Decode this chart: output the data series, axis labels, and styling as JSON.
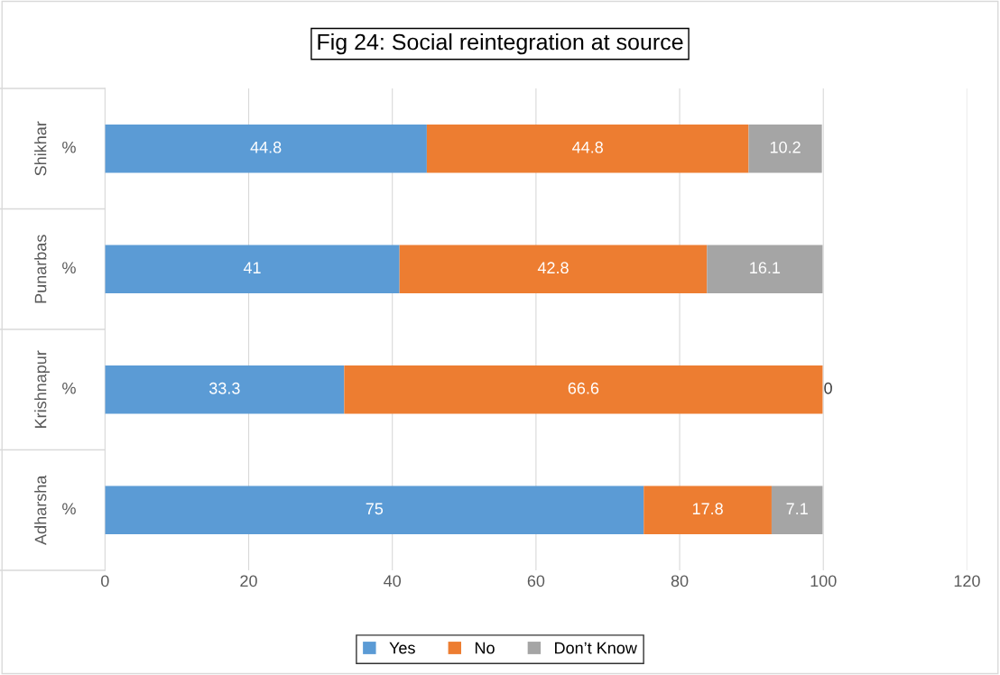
{
  "chart_data": {
    "type": "bar",
    "orientation": "horizontal",
    "stacked": true,
    "title": "Fig 24: Social reintegration at source",
    "categories": [
      "Shikhar",
      "Punarbas",
      "Krishnapur",
      "Adharsha"
    ],
    "annotations": [
      "%",
      "%",
      "%",
      "%"
    ],
    "series": [
      {
        "name": "Yes",
        "color": "#5b9bd5",
        "values": [
          44.8,
          41,
          33.3,
          75
        ]
      },
      {
        "name": "No",
        "color": "#ed7d31",
        "values": [
          44.8,
          42.8,
          66.6,
          17.8
        ]
      },
      {
        "name": "Don’t Know",
        "color": "#a5a5a5",
        "values": [
          10.2,
          16.1,
          0,
          7.1
        ]
      }
    ],
    "xlim": [
      0,
      120
    ],
    "xticks": [
      0,
      20,
      40,
      60,
      80,
      100,
      120
    ],
    "grid": "x",
    "legend": "bottom",
    "data_labels": true
  }
}
